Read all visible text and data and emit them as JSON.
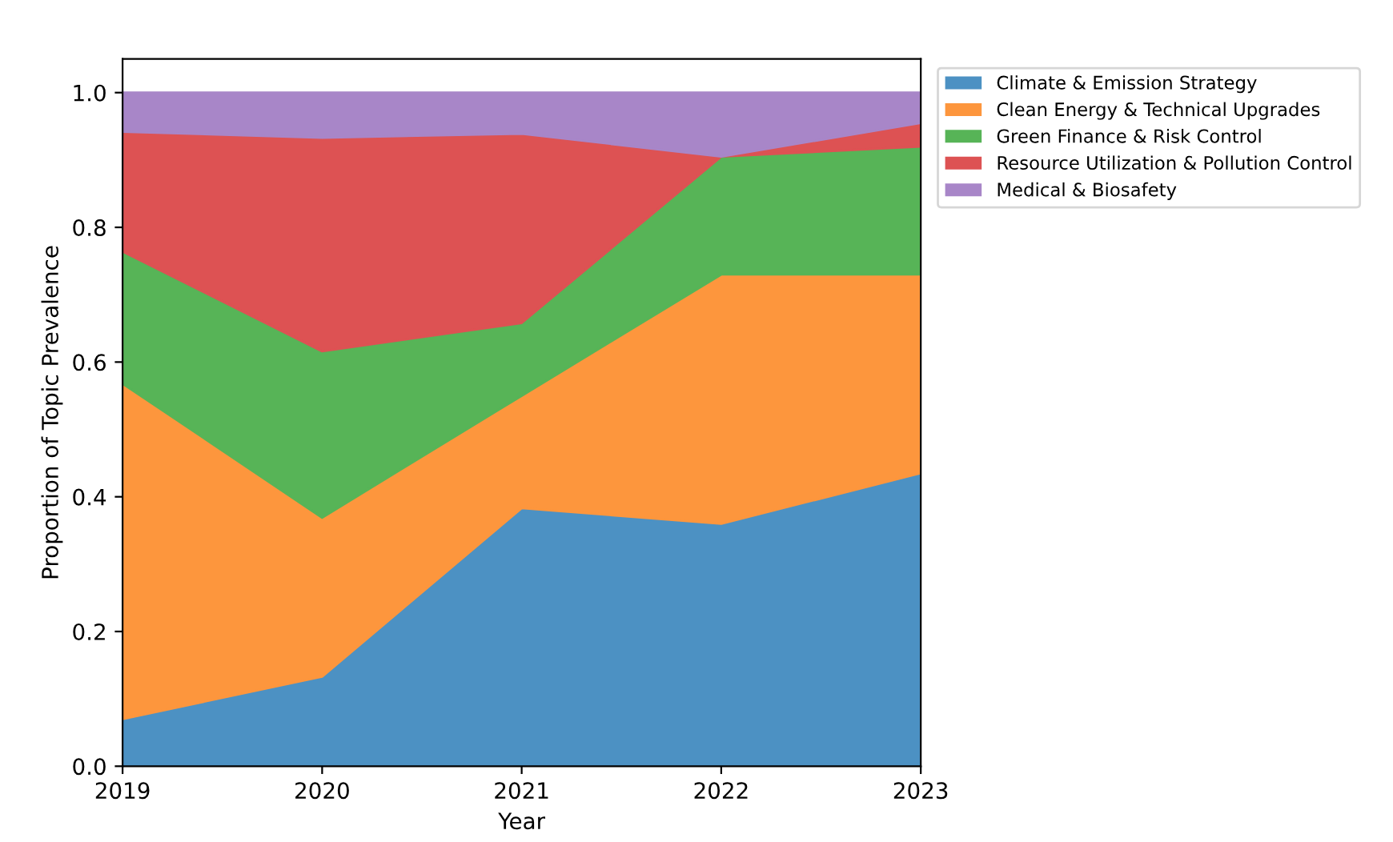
{
  "chart_data": {
    "type": "area",
    "stacked": true,
    "xlabel": "Year",
    "ylabel": "Proportion of Topic Prevalence",
    "x": [
      2019,
      2020,
      2021,
      2022,
      2023
    ],
    "xlim": [
      2019,
      2023
    ],
    "xticks": [
      2019,
      2020,
      2021,
      2022,
      2023
    ],
    "ylim": [
      0,
      1.05
    ],
    "yticks": [
      {
        "value": 0,
        "label": "0.0"
      },
      {
        "value": 0.2,
        "label": "0.2"
      },
      {
        "value": 0.4,
        "label": "0.4"
      },
      {
        "value": 0.6,
        "label": "0.6"
      },
      {
        "value": 0.8,
        "label": "0.8"
      },
      {
        "value": 1.0,
        "label": "1.0"
      }
    ],
    "grid": false,
    "legend": "top right",
    "series": [
      {
        "name": "Climate & Emission Strategy",
        "color": "#4c91c3",
        "values": [
          0.07,
          0.133,
          0.383,
          0.36,
          0.435
        ]
      },
      {
        "name": "Clean Energy & Technical Upgrades",
        "color": "#fd963d",
        "values": [
          0.498,
          0.236,
          0.167,
          0.37,
          0.295
        ]
      },
      {
        "name": "Green Finance & Risk Control",
        "color": "#57b457",
        "values": [
          0.196,
          0.247,
          0.108,
          0.175,
          0.19
        ]
      },
      {
        "name": "Resource Utilization & Pollution Control",
        "color": "#dd5253",
        "values": [
          0.178,
          0.317,
          0.281,
          0.0,
          0.035
        ]
      },
      {
        "name": "Medical & Biosafety",
        "color": "#a886c8",
        "values": [
          0.058,
          0.067,
          0.061,
          0.095,
          0.045
        ]
      }
    ]
  }
}
